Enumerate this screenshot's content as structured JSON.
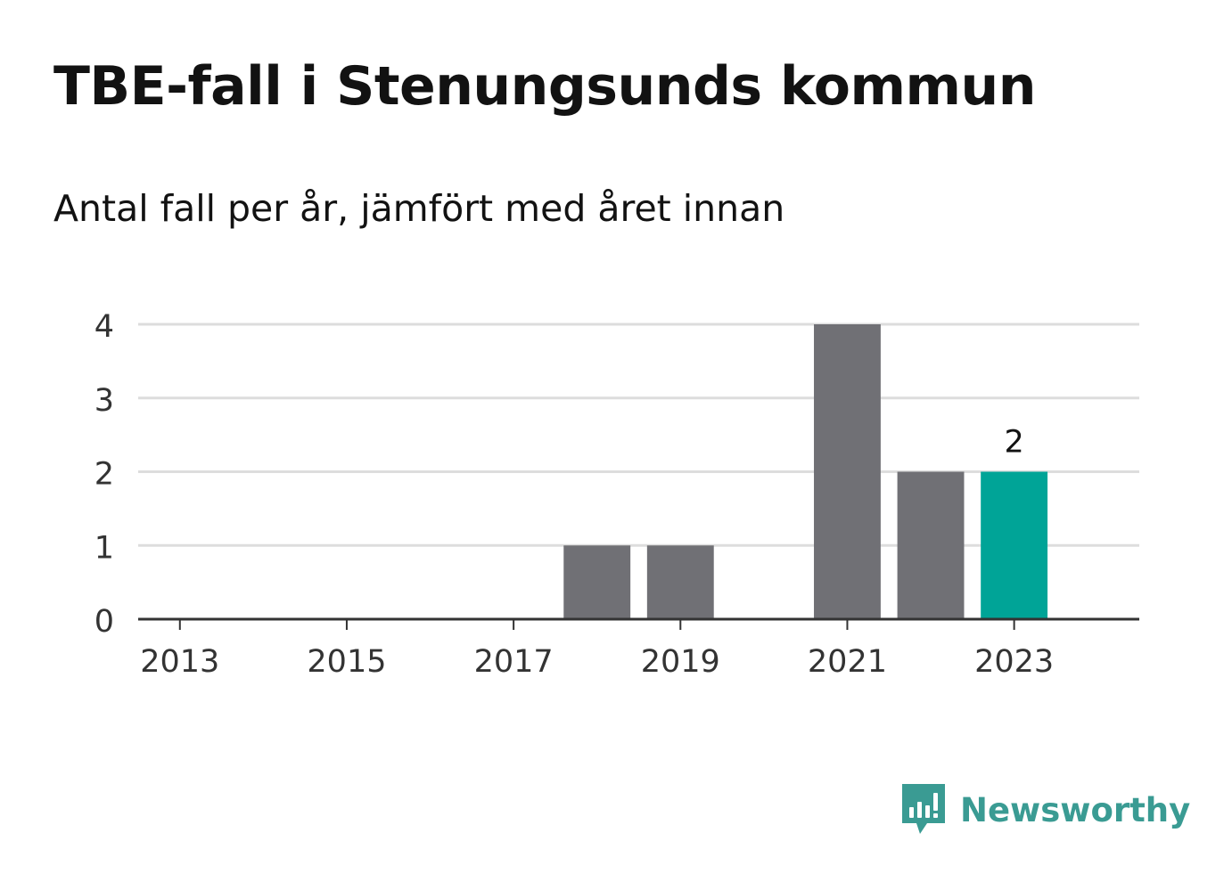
{
  "title": "TBE-fall i Stenungsunds kommun",
  "subtitle": "Antal fall per år, jämfört med året innan",
  "brand": {
    "name": "Newsworthy",
    "color": "#3a9b93",
    "icon": "newsworthy-logo-icon"
  },
  "colors": {
    "bar": "#707075",
    "highlight": "#00a497",
    "grid": "#dddddd",
    "axis": "#333333",
    "text": "#333333"
  },
  "chart_data": {
    "type": "bar",
    "title": "TBE-fall i Stenungsunds kommun",
    "subtitle": "Antal fall per år, jämfört med året innan",
    "xlabel": "",
    "ylabel": "",
    "x": [
      2013,
      2014,
      2015,
      2016,
      2017,
      2018,
      2019,
      2020,
      2021,
      2022,
      2023
    ],
    "values": [
      0,
      0,
      0,
      0,
      0,
      1,
      1,
      0,
      4,
      2,
      2
    ],
    "highlight": 2023,
    "x_ticks": [
      "2013",
      "2015",
      "2017",
      "2019",
      "2021",
      "2023"
    ],
    "y_ticks": [
      "0",
      "1",
      "2",
      "3",
      "4"
    ],
    "ylim": [
      0,
      4
    ],
    "grid": true,
    "data_labels": [
      {
        "x": 2023,
        "text": "2"
      }
    ]
  }
}
